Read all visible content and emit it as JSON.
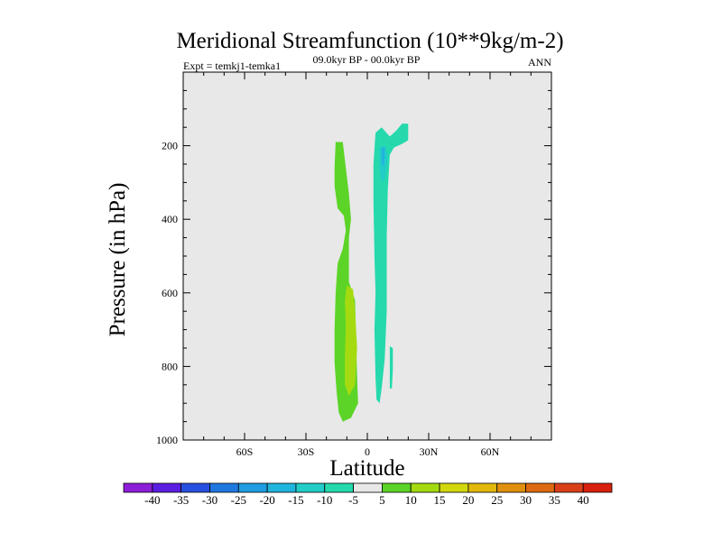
{
  "chart_data": {
    "type": "contour",
    "title": "Meridional Streamfunction (10**9kg/m-2)",
    "subtitle_left": "Expt = temkj1-temka1",
    "subtitle_center": "09.0kyr BP - 00.0kyr BP",
    "subtitle_right": "ANN",
    "xlabel": "Latitude",
    "ylabel": "Pressure (in hPa)",
    "xlim": [
      -90,
      90
    ],
    "ylim": [
      1000,
      0
    ],
    "x_ticks": [
      {
        "value": -60,
        "label": "60S"
      },
      {
        "value": -30,
        "label": "30S"
      },
      {
        "value": 0,
        "label": "0"
      },
      {
        "value": 30,
        "label": "30N"
      },
      {
        "value": 60,
        "label": "60N"
      }
    ],
    "y_ticks": [
      {
        "value": 200,
        "label": "200"
      },
      {
        "value": 400,
        "label": "400"
      },
      {
        "value": 600,
        "label": "600"
      },
      {
        "value": 800,
        "label": "800"
      },
      {
        "value": 1000,
        "label": "1000"
      }
    ],
    "background_color": "#e8e8e8",
    "colorbar": {
      "labels": [
        "-40",
        "-35",
        "-30",
        "-25",
        "-20",
        "-15",
        "-10",
        "-5",
        "5",
        "10",
        "15",
        "20",
        "25",
        "30",
        "35",
        "40"
      ],
      "colors": [
        "#8c1ed8",
        "#5a1ee0",
        "#2850e0",
        "#1f78e0",
        "#1e9de0",
        "#20b5dc",
        "#22cdc8",
        "#25d9ad",
        "#e8e8e8",
        "#5cd427",
        "#a4db10",
        "#d2d80d",
        "#e2b80b",
        "#e0900e",
        "#dd6a10",
        "#d9401a",
        "#d8200e"
      ]
    },
    "regions": [
      {
        "level": 5,
        "color": "#5cd427",
        "points": [
          [
            -15.5,
            190
          ],
          [
            -12,
            190
          ],
          [
            -10.5,
            260
          ],
          [
            -9,
            330
          ],
          [
            -8,
            400
          ],
          [
            -9,
            450
          ],
          [
            -9,
            570
          ],
          [
            -6,
            620
          ],
          [
            -5.5,
            720
          ],
          [
            -5,
            830
          ],
          [
            -4.5,
            900
          ],
          [
            -8,
            940
          ],
          [
            -12,
            950
          ],
          [
            -14,
            925
          ],
          [
            -15,
            870
          ],
          [
            -16,
            790
          ],
          [
            -16,
            700
          ],
          [
            -15.5,
            600
          ],
          [
            -14.5,
            520
          ],
          [
            -12,
            480
          ],
          [
            -10.5,
            430
          ],
          [
            -11.5,
            390
          ],
          [
            -14.5,
            370
          ],
          [
            -16,
            310
          ],
          [
            -16,
            260
          ]
        ]
      },
      {
        "level": 10,
        "color": "#a4db10",
        "points": [
          [
            -10,
            580
          ],
          [
            -7,
            590
          ],
          [
            -6,
            650
          ],
          [
            -5,
            750
          ],
          [
            -6,
            850
          ],
          [
            -9,
            880
          ],
          [
            -11,
            850
          ],
          [
            -11,
            780
          ],
          [
            -10.5,
            690
          ],
          [
            -11,
            620
          ]
        ]
      },
      {
        "level": -5,
        "color": "#25d9ad",
        "points": [
          [
            4,
            165
          ],
          [
            7,
            150
          ],
          [
            11,
            175
          ],
          [
            14,
            160
          ],
          [
            17,
            140
          ],
          [
            20,
            140
          ],
          [
            20,
            185
          ],
          [
            17,
            195
          ],
          [
            13,
            205
          ],
          [
            11,
            225
          ],
          [
            10,
            320
          ],
          [
            9.5,
            450
          ],
          [
            9.5,
            650
          ],
          [
            8.5,
            780
          ],
          [
            7,
            860
          ],
          [
            6,
            900
          ],
          [
            4.5,
            890
          ],
          [
            4,
            830
          ],
          [
            3.5,
            700
          ],
          [
            4,
            600
          ],
          [
            3.5,
            500
          ],
          [
            3,
            350
          ],
          [
            3,
            250
          ]
        ]
      },
      {
        "level": -5,
        "color": "#25d9ad",
        "points": [
          [
            11,
            745
          ],
          [
            12.5,
            750
          ],
          [
            12.5,
            810
          ],
          [
            12,
            860
          ],
          [
            11,
            860
          ],
          [
            11,
            800
          ]
        ]
      },
      {
        "level": -10,
        "color": "#22cdc8",
        "points": [
          [
            6,
            205
          ],
          [
            9,
            200
          ],
          [
            10,
            235
          ],
          [
            8.5,
            290
          ],
          [
            7,
            300
          ],
          [
            6,
            265
          ]
        ]
      },
      {
        "level": -15,
        "color": "#20b5dc",
        "points": [
          [
            7,
            205
          ],
          [
            8.5,
            205
          ],
          [
            8.5,
            235
          ],
          [
            8,
            255
          ],
          [
            7,
            250
          ]
        ]
      }
    ]
  }
}
